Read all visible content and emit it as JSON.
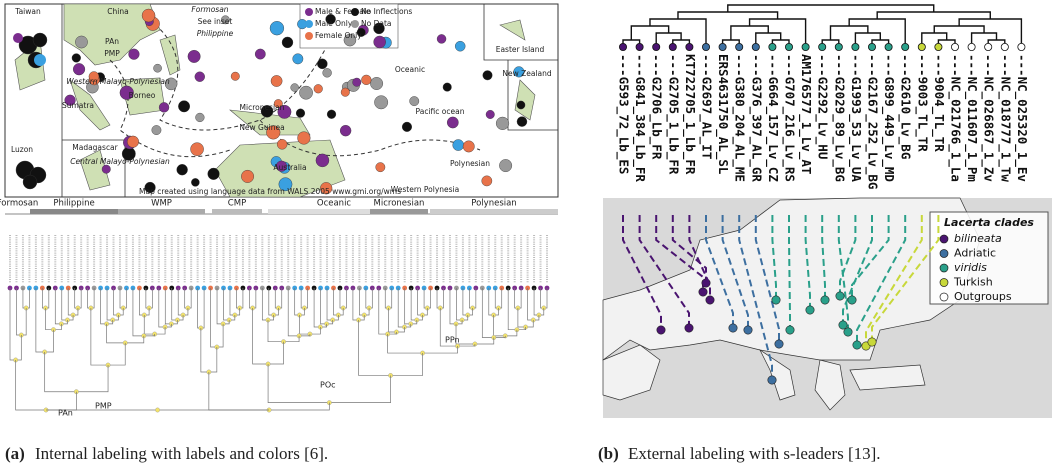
{
  "panel_a": {
    "map_labels": [
      "Taiwan",
      "China",
      "Formosan",
      "See inset",
      "Philippine",
      "PAn",
      "PMP",
      "Micronesian",
      "Oceanic",
      "Pacific ocean",
      "Easter Island",
      "New Zealand",
      "Luzon",
      "Madagascar",
      "Sumatra",
      "Borneo",
      "Western Malayo-Polynesian",
      "Central Malayo-Polynesian",
      "New Guinea",
      "Australia",
      "Polynesian",
      "Western Polynesia"
    ],
    "credit": "Map created using language data from WALS 2005 www.gmi.org/wms",
    "legend": [
      "Male & Female",
      "No Inflections",
      "Male Only",
      "No Data",
      "Female Only"
    ],
    "groups": [
      "Formosan",
      "Philippine",
      "WMP",
      "CMP",
      "Oceanic",
      "Micronesian",
      "Polynesian"
    ],
    "tree_labels": [
      "PAn",
      "PMP",
      "POc",
      "PPn"
    ]
  },
  "panel_b": {
    "tips": [
      "---G593_72_Lb_ES",
      "---G841_384_Lb_FR",
      "---G2706_Lb_FR",
      "---G2705_1_Lb_FR",
      "KT722705_1_Lb_FR",
      "---G2697_AL_IT",
      "ERS4631750_AL_SL",
      "---G380_204_AL_ME",
      "---G376_397_AL_GR",
      "---G664_157_Lv_CZ",
      "---G707_216_Lv_RS",
      "AM176577_1_Lv_AT",
      "---G2292_Lv_HU",
      "---G2029_89_Lv_BG",
      "---G1993_53_Lv_UA",
      "---G2167_252_Lv_BG",
      "---G899_449_Lv_MD",
      "---G2610_Lv_BG",
      "---9003_TL_TR",
      "---9004_TL_TR",
      "---NC_021766_1_La",
      "---NC_011607_1_Pm",
      "---NC_026867_1_Zv",
      "---NC_018777_1_Tw",
      "---NC_025320_1_Ev"
    ],
    "legend_title": "Lacerta clades",
    "legend": [
      "bilineata",
      "Adriatic",
      "viridis",
      "Turkish",
      "Outgroups"
    ]
  },
  "captions": [
    {
      "tag": "(a)",
      "text": "Internal labeling with labels and colors [6]."
    },
    {
      "tag": "(b)",
      "text": "External labeling with s-leaders [13]."
    }
  ]
}
